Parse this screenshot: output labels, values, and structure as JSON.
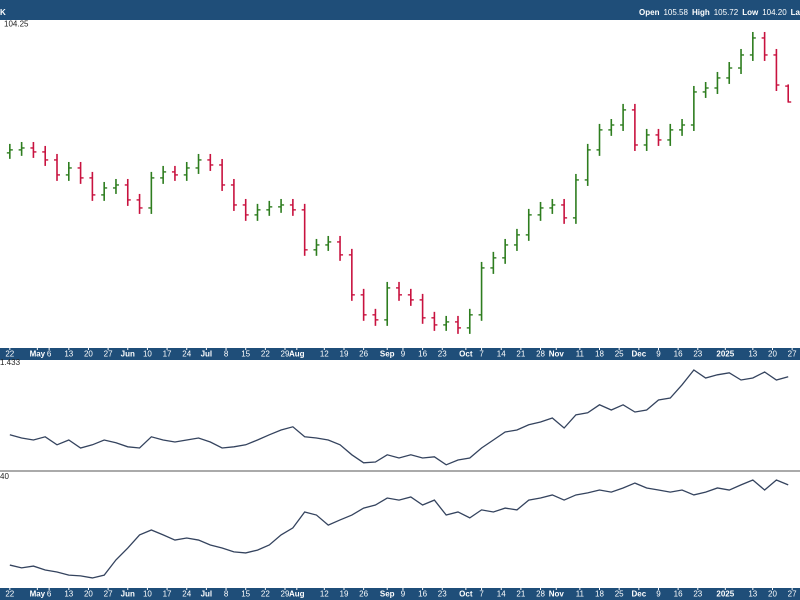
{
  "header": {
    "ticker": "K",
    "fields": [
      {
        "label": "Open",
        "value": "105.58"
      },
      {
        "label": "High",
        "value": "105.72"
      },
      {
        "label": "Low",
        "value": "104.20"
      },
      {
        "label": "La"
      }
    ]
  },
  "chart_data": [
    {
      "type": "ohlc",
      "up_color": "#2e7d1f",
      "down_color": "#c8123f",
      "x": [
        0,
        3,
        6,
        9,
        12,
        15,
        18,
        21,
        24,
        27,
        30,
        33,
        36,
        39,
        42,
        45,
        48,
        51,
        54,
        57,
        60,
        63,
        66,
        69,
        72,
        75,
        78,
        81,
        84,
        87,
        90,
        93,
        96,
        99,
        102,
        105,
        108,
        111,
        114,
        117,
        120,
        123,
        126,
        129,
        132,
        135,
        138,
        141,
        144,
        147,
        150,
        153,
        156,
        159,
        162,
        165,
        168,
        171,
        174,
        177,
        180,
        183,
        186,
        189,
        192,
        195,
        198
      ],
      "open": [
        100.0,
        100.25,
        100.41,
        100.08,
        99.41,
        98.16,
        98.74,
        97.91,
        96.49,
        97.07,
        97.32,
        96.07,
        95.4,
        97.91,
        98.41,
        98.16,
        98.74,
        99.41,
        98.99,
        97.32,
        95.65,
        94.82,
        95.24,
        95.49,
        95.65,
        95.24,
        91.9,
        92.31,
        92.56,
        91.48,
        88.14,
        86.47,
        86.05,
        88.72,
        88.14,
        87.72,
        86.22,
        85.63,
        85.88,
        85.38,
        86.47,
        90.39,
        91.23,
        92.31,
        93.15,
        94.82,
        95.4,
        95.65,
        94.57,
        97.74,
        100.25,
        101.92,
        102.33,
        103.59,
        100.66,
        101.5,
        101.08,
        101.92,
        102.33,
        105.09,
        105.42,
        106.26,
        107.09,
        108.18,
        109.6,
        108.18,
        105.58
      ],
      "high": [
        100.75,
        100.91,
        100.91,
        100.58,
        99.91,
        99.24,
        99.24,
        98.41,
        97.57,
        97.82,
        97.82,
        96.57,
        98.41,
        98.91,
        98.91,
        99.24,
        99.91,
        99.91,
        99.49,
        97.82,
        96.15,
        95.74,
        95.99,
        96.15,
        96.15,
        95.74,
        92.81,
        93.06,
        93.06,
        91.98,
        88.64,
        86.97,
        89.22,
        89.22,
        88.64,
        88.22,
        86.72,
        86.38,
        86.38,
        86.97,
        90.89,
        91.73,
        92.81,
        93.65,
        95.32,
        95.9,
        96.15,
        96.15,
        98.24,
        100.75,
        102.42,
        102.83,
        104.09,
        104.09,
        102.0,
        102.0,
        102.42,
        102.83,
        105.59,
        105.92,
        106.76,
        107.59,
        108.68,
        110.1,
        110.1,
        108.68,
        105.72
      ],
      "low": [
        99.5,
        99.75,
        99.58,
        98.91,
        97.66,
        97.66,
        97.41,
        95.99,
        95.99,
        96.57,
        95.57,
        94.9,
        94.9,
        97.41,
        97.66,
        97.66,
        98.24,
        98.49,
        96.82,
        95.15,
        94.32,
        94.32,
        94.74,
        94.99,
        94.74,
        91.4,
        91.4,
        91.81,
        90.98,
        87.64,
        85.97,
        85.55,
        85.55,
        87.64,
        87.22,
        85.72,
        85.13,
        85.13,
        84.88,
        84.88,
        85.97,
        89.89,
        90.73,
        91.81,
        92.65,
        94.32,
        94.9,
        94.07,
        94.07,
        97.24,
        99.75,
        101.42,
        101.83,
        100.16,
        100.16,
        100.58,
        100.58,
        101.42,
        101.83,
        104.59,
        104.92,
        105.76,
        106.59,
        107.68,
        107.68,
        105.17,
        104.2
      ],
      "close": [
        100.25,
        100.41,
        100.08,
        99.41,
        98.16,
        98.74,
        97.91,
        96.49,
        97.07,
        97.32,
        96.07,
        95.4,
        97.91,
        98.41,
        98.16,
        98.74,
        99.41,
        98.99,
        97.32,
        95.65,
        94.82,
        95.24,
        95.49,
        95.65,
        95.24,
        91.9,
        92.31,
        92.56,
        91.48,
        88.14,
        86.47,
        86.05,
        88.72,
        88.14,
        87.72,
        86.22,
        85.63,
        85.88,
        85.38,
        86.47,
        90.39,
        91.23,
        92.31,
        93.15,
        94.82,
        95.4,
        95.65,
        94.57,
        97.74,
        100.25,
        101.92,
        102.33,
        103.59,
        100.66,
        101.5,
        101.08,
        101.92,
        102.33,
        105.09,
        105.42,
        106.26,
        107.09,
        108.18,
        109.6,
        108.18,
        105.67,
        104.25
      ],
      "xlim": [
        -2.5,
        201
      ],
      "ylim": [
        83.7,
        111.1
      ],
      "xticks": [
        {
          "value": 0,
          "label": "22"
        },
        {
          "value": 7,
          "label": "May"
        },
        {
          "value": 10,
          "label": "6"
        },
        {
          "value": 15,
          "label": "13"
        },
        {
          "value": 20,
          "label": "20"
        },
        {
          "value": 25,
          "label": "27"
        },
        {
          "value": 30,
          "label": "Jun"
        },
        {
          "value": 35,
          "label": "10"
        },
        {
          "value": 40,
          "label": "17"
        },
        {
          "value": 45,
          "label": "24"
        },
        {
          "value": 50,
          "label": "Jul"
        },
        {
          "value": 55,
          "label": "8"
        },
        {
          "value": 60,
          "label": "15"
        },
        {
          "value": 65,
          "label": "22"
        },
        {
          "value": 70,
          "label": "29"
        },
        {
          "value": 73,
          "label": "Aug"
        },
        {
          "value": 80,
          "label": "12"
        },
        {
          "value": 85,
          "label": "19"
        },
        {
          "value": 90,
          "label": "26"
        },
        {
          "value": 96,
          "label": "Sep"
        },
        {
          "value": 100,
          "label": "9"
        },
        {
          "value": 105,
          "label": "16"
        },
        {
          "value": 110,
          "label": "23"
        },
        {
          "value": 116,
          "label": "Oct"
        },
        {
          "value": 120,
          "label": "7"
        },
        {
          "value": 125,
          "label": "14"
        },
        {
          "value": 130,
          "label": "21"
        },
        {
          "value": 135,
          "label": "28"
        },
        {
          "value": 139,
          "label": "Nov"
        },
        {
          "value": 145,
          "label": "11"
        },
        {
          "value": 150,
          "label": "18"
        },
        {
          "value": 155,
          "label": "25"
        },
        {
          "value": 160,
          "label": "Dec"
        },
        {
          "value": 165,
          "label": "9"
        },
        {
          "value": 170,
          "label": "16"
        },
        {
          "value": 175,
          "label": "23"
        },
        {
          "value": 182,
          "label": "2025"
        },
        {
          "value": 189,
          "label": "13"
        },
        {
          "value": 194,
          "label": "20"
        },
        {
          "value": 199,
          "label": "27"
        }
      ]
    },
    {
      "type": "line",
      "x": [
        0,
        3,
        6,
        9,
        12,
        15,
        18,
        21,
        24,
        27,
        30,
        33,
        36,
        39,
        42,
        45,
        48,
        51,
        54,
        57,
        60,
        63,
        66,
        69,
        72,
        75,
        78,
        81,
        84,
        87,
        90,
        93,
        96,
        99,
        102,
        105,
        108,
        111,
        114,
        117,
        120,
        123,
        126,
        129,
        132,
        135,
        138,
        141,
        144,
        147,
        150,
        153,
        156,
        159,
        162,
        165,
        168,
        171,
        174,
        177,
        180,
        183,
        186,
        189,
        192,
        195,
        198
      ],
      "series": [
        {
          "color": "#34435e",
          "values": [
            1.288,
            1.28,
            1.275,
            1.283,
            1.263,
            1.275,
            1.255,
            1.263,
            1.275,
            1.268,
            1.258,
            1.255,
            1.283,
            1.275,
            1.27,
            1.275,
            1.28,
            1.27,
            1.255,
            1.258,
            1.263,
            1.275,
            1.288,
            1.3,
            1.308,
            1.283,
            1.28,
            1.275,
            1.263,
            1.238,
            1.218,
            1.22,
            1.238,
            1.23,
            1.238,
            1.23,
            1.233,
            1.213,
            1.225,
            1.23,
            1.255,
            1.275,
            1.295,
            1.3,
            1.313,
            1.32,
            1.33,
            1.305,
            1.338,
            1.343,
            1.363,
            1.35,
            1.363,
            1.345,
            1.35,
            1.375,
            1.38,
            1.413,
            1.45,
            1.43,
            1.438,
            1.443,
            1.425,
            1.43,
            1.445,
            1.425,
            1.433
          ]
        }
      ],
      "xlim": [
        -2.5,
        201
      ],
      "ylim": [
        1.2,
        1.48
      ]
    },
    {
      "type": "line",
      "x": [
        0,
        3,
        6,
        9,
        12,
        15,
        18,
        21,
        24,
        27,
        30,
        33,
        36,
        39,
        42,
        45,
        48,
        51,
        54,
        57,
        60,
        63,
        66,
        69,
        72,
        75,
        78,
        81,
        84,
        87,
        90,
        93,
        96,
        99,
        102,
        105,
        108,
        111,
        114,
        117,
        120,
        123,
        126,
        129,
        132,
        135,
        138,
        141,
        144,
        147,
        150,
        153,
        156,
        159,
        162,
        165,
        168,
        171,
        174,
        177,
        180,
        183,
        186,
        189,
        192,
        195,
        198
      ],
      "series": [
        {
          "color": "#34435e",
          "values": [
            8.9,
            7.8,
            8.5,
            7.0,
            6.2,
            5.0,
            4.7,
            3.9,
            5.0,
            10.9,
            15.5,
            20.6,
            22.5,
            20.6,
            18.6,
            19.4,
            18.6,
            16.7,
            15.5,
            14.0,
            13.6,
            14.7,
            16.7,
            20.6,
            23.3,
            29.5,
            28.3,
            24.4,
            26.4,
            28.3,
            31.0,
            32.2,
            34.9,
            34.1,
            35.3,
            32.2,
            34.1,
            28.3,
            29.5,
            27.2,
            30.3,
            29.5,
            31.0,
            30.3,
            34.1,
            34.9,
            36.1,
            34.1,
            36.1,
            36.9,
            38.0,
            37.2,
            38.8,
            40.7,
            38.8,
            38.0,
            37.2,
            38.0,
            36.1,
            37.2,
            38.8,
            38.0,
            40.0,
            41.9,
            38.0,
            41.9,
            40
          ]
        }
      ],
      "xlim": [
        -2.5,
        201
      ],
      "ylim": [
        0,
        45
      ],
      "xticks": [
        {
          "value": 0,
          "label": "22"
        },
        {
          "value": 7,
          "label": "May"
        },
        {
          "value": 10,
          "label": "6"
        },
        {
          "value": 15,
          "label": "13"
        },
        {
          "value": 20,
          "label": "20"
        },
        {
          "value": 25,
          "label": "27"
        },
        {
          "value": 30,
          "label": "Jun"
        },
        {
          "value": 35,
          "label": "10"
        },
        {
          "value": 40,
          "label": "17"
        },
        {
          "value": 45,
          "label": "24"
        },
        {
          "value": 50,
          "label": "Jul"
        },
        {
          "value": 55,
          "label": "8"
        },
        {
          "value": 60,
          "label": "15"
        },
        {
          "value": 65,
          "label": "22"
        },
        {
          "value": 70,
          "label": "29"
        },
        {
          "value": 73,
          "label": "Aug"
        },
        {
          "value": 80,
          "label": "12"
        },
        {
          "value": 85,
          "label": "19"
        },
        {
          "value": 90,
          "label": "26"
        },
        {
          "value": 96,
          "label": "Sep"
        },
        {
          "value": 100,
          "label": "9"
        },
        {
          "value": 105,
          "label": "16"
        },
        {
          "value": 110,
          "label": "23"
        },
        {
          "value": 116,
          "label": "Oct"
        },
        {
          "value": 120,
          "label": "7"
        },
        {
          "value": 125,
          "label": "14"
        },
        {
          "value": 130,
          "label": "21"
        },
        {
          "value": 135,
          "label": "28"
        },
        {
          "value": 139,
          "label": "Nov"
        },
        {
          "value": 145,
          "label": "11"
        },
        {
          "value": 150,
          "label": "18"
        },
        {
          "value": 155,
          "label": "25"
        },
        {
          "value": 160,
          "label": "Dec"
        },
        {
          "value": 165,
          "label": "9"
        },
        {
          "value": 170,
          "label": "16"
        },
        {
          "value": 175,
          "label": "23"
        },
        {
          "value": 182,
          "label": "2025"
        },
        {
          "value": 189,
          "label": "13"
        },
        {
          "value": 194,
          "label": "20"
        },
        {
          "value": 199,
          "label": "27"
        }
      ]
    }
  ]
}
